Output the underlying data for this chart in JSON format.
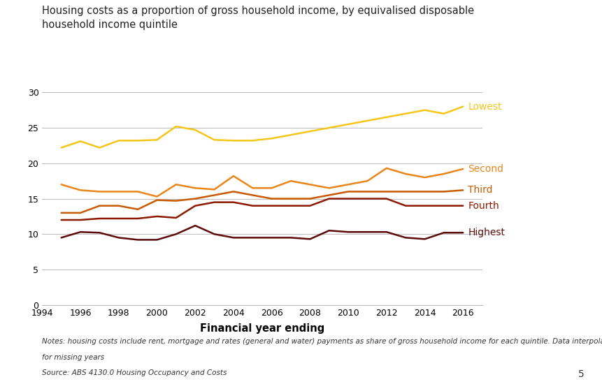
{
  "title": "Housing costs as a proportion of gross household income, by equivalised disposable\nhousehold income quintile",
  "xlabel": "Financial year ending",
  "years": [
    1995,
    1996,
    1997,
    1998,
    1999,
    2000,
    2001,
    2002,
    2003,
    2004,
    2005,
    2006,
    2007,
    2008,
    2009,
    2010,
    2011,
    2012,
    2013,
    2014,
    2015,
    2016
  ],
  "series": {
    "Lowest": [
      22.2,
      23.1,
      22.2,
      23.2,
      23.2,
      23.3,
      25.2,
      24.7,
      23.3,
      23.2,
      23.2,
      23.5,
      24.0,
      24.5,
      25.0,
      25.5,
      26.0,
      26.5,
      27.0,
      27.5,
      27.0,
      28.0
    ],
    "Second": [
      17.0,
      16.2,
      16.0,
      16.0,
      16.0,
      15.3,
      17.0,
      16.5,
      16.3,
      18.2,
      16.5,
      16.5,
      17.5,
      17.0,
      16.5,
      17.0,
      17.5,
      19.3,
      18.5,
      18.0,
      18.5,
      19.2
    ],
    "Third": [
      13.0,
      13.0,
      14.0,
      14.0,
      13.5,
      14.8,
      14.7,
      15.0,
      15.5,
      16.0,
      15.5,
      15.0,
      15.0,
      15.0,
      15.5,
      16.0,
      16.0,
      16.0,
      16.0,
      16.0,
      16.0,
      16.2
    ],
    "Fourth": [
      12.0,
      12.0,
      12.2,
      12.2,
      12.2,
      12.5,
      12.3,
      14.0,
      14.5,
      14.5,
      14.0,
      14.0,
      14.0,
      14.0,
      15.0,
      15.0,
      15.0,
      15.0,
      14.0,
      14.0,
      14.0,
      14.0
    ],
    "Highest": [
      9.5,
      10.3,
      10.2,
      9.5,
      9.2,
      9.2,
      10.0,
      11.2,
      10.0,
      9.5,
      9.5,
      9.5,
      9.5,
      9.3,
      10.5,
      10.3,
      10.3,
      10.3,
      9.5,
      9.3,
      10.2,
      10.2
    ]
  },
  "colors": {
    "Lowest": "#F5C518",
    "Second": "#E8861A",
    "Third": "#C85A00",
    "Fourth": "#8B1A00",
    "Highest": "#5C0A0A"
  },
  "ylim": [
    0,
    32
  ],
  "yticks": [
    0,
    5,
    10,
    15,
    20,
    25,
    30
  ],
  "xlim": [
    1994,
    2017
  ],
  "xticks": [
    1994,
    1996,
    1998,
    2000,
    2002,
    2004,
    2006,
    2008,
    2010,
    2012,
    2014,
    2016
  ],
  "notes_line1": "Notes: housing costs include rent, mortgage and rates (general and water) payments as share of gross household income for each quintile. Data interpolated",
  "notes_line2": "for missing years",
  "notes_line3": "Source: ABS 4130.0 Housing Occupancy and Costs",
  "page_number": "5",
  "background_color": "#ffffff",
  "grid_color": "#bbbbbb"
}
